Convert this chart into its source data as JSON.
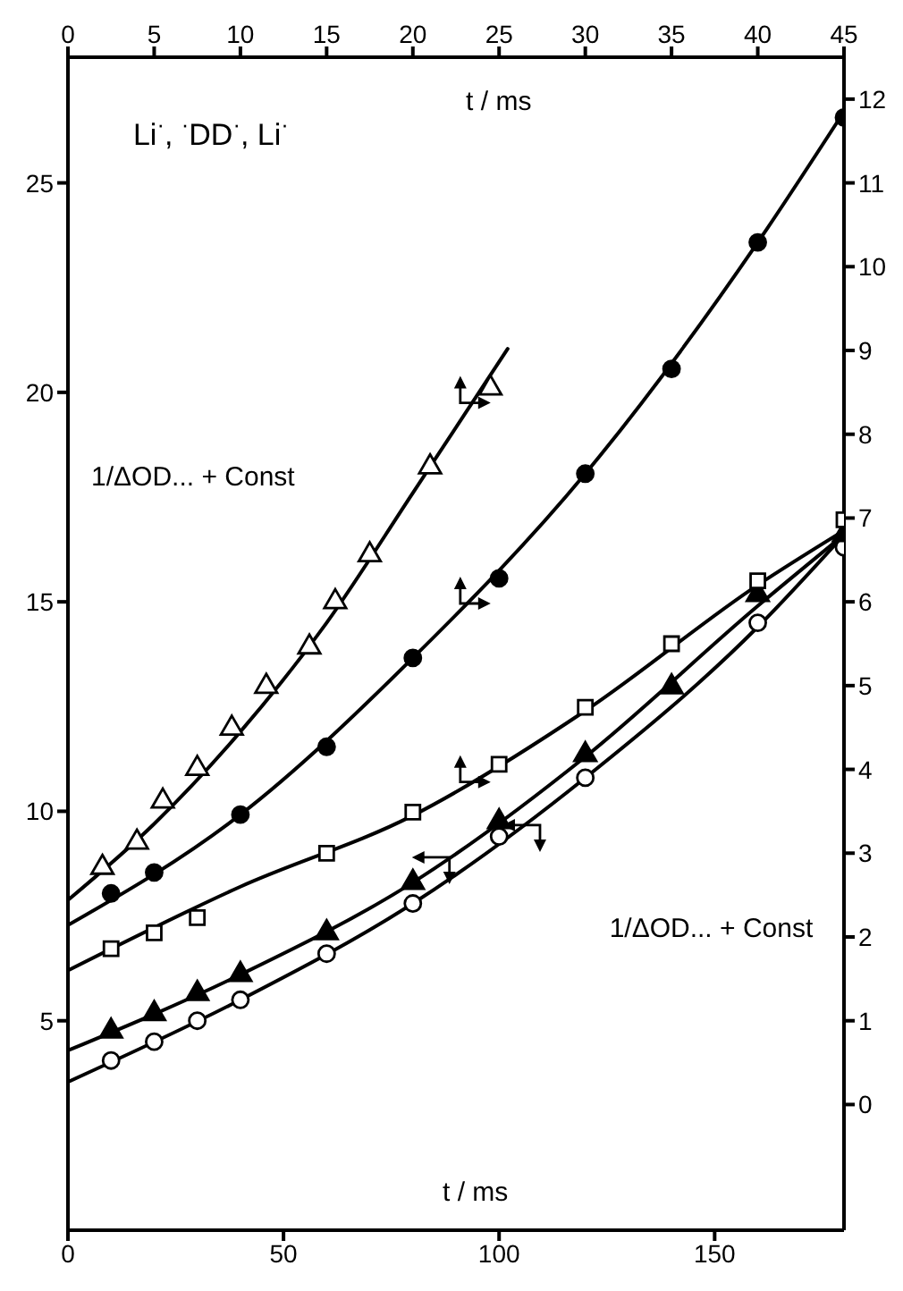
{
  "chart_data": {
    "type": "scatter",
    "title": "Li$^{·}$, $^{·}$DD$^{·}$, Li$^{·}$",
    "xlabel": "t / ms",
    "x2label": "t / ms",
    "ylabel": "1/ΔOD... + Const",
    "y2label": "1/ΔOD... + Const",
    "xlim": [
      0,
      180
    ],
    "xticks": [
      0,
      50,
      100,
      150
    ],
    "x2lim": [
      0,
      45
    ],
    "x2ticks": [
      0,
      5,
      10,
      15,
      20,
      25,
      30,
      35,
      40,
      45
    ],
    "ylim": [
      0,
      28
    ],
    "yticks": [
      5,
      10,
      15,
      20,
      25
    ],
    "y2lim": [
      -1.5,
      12.5
    ],
    "y2ticks": [
      0,
      1,
      2,
      3,
      4,
      5,
      6,
      7,
      8,
      9,
      10,
      11,
      12
    ],
    "series": [
      {
        "type": "line",
        "color": "#000000",
        "line_style": "solid",
        "marker": "none",
        "x": [
          0,
          40,
          80,
          120,
          160,
          180
        ],
        "values": [
          3.54,
          5.5,
          7.8,
          10.8,
          14.4,
          16.6
        ]
      },
      {
        "type": "line",
        "color": "#000000",
        "line_style": "solid",
        "marker": "none",
        "x": [
          0,
          40,
          80,
          120,
          160,
          180
        ],
        "values": [
          4.29,
          6.1,
          8.3,
          11.3,
          14.9,
          16.6
        ]
      },
      {
        "type": "line",
        "color": "#000000",
        "line_style": "solid",
        "marker": "none",
        "axis": "y2",
        "x": [
          0,
          40,
          80,
          120,
          160,
          180
        ],
        "values": [
          1.6,
          2.6,
          3.45,
          4.7,
          6.2,
          6.85
        ]
      },
      {
        "type": "line",
        "color": "#000000",
        "line_style": "solid",
        "marker": "none",
        "axis": "y2",
        "x": [
          0,
          40,
          80,
          120,
          160,
          180
        ],
        "values": [
          2.14,
          3.46,
          5.33,
          7.53,
          10.29,
          11.85
        ]
      },
      {
        "type": "line",
        "color": "#000000",
        "line_style": "solid",
        "marker": "none",
        "axis": "y2",
        "x": [
          0,
          20,
          40,
          60,
          80,
          102
        ],
        "values": [
          2.44,
          3.35,
          4.45,
          5.75,
          7.3,
          9.02
        ]
      },
      {
        "color": "#ffffff",
        "marker": "circle",
        "x": [
          10,
          20,
          30,
          40,
          60,
          80,
          100,
          120,
          160,
          180
        ],
        "values": [
          4.05,
          4.5,
          5.0,
          5.5,
          6.6,
          7.8,
          9.4,
          10.8,
          14.5,
          16.3
        ]
      },
      {
        "color": "#000000",
        "marker": "triangle",
        "x": [
          10,
          20,
          30,
          40,
          60,
          80,
          100,
          120,
          140,
          160,
          180
        ],
        "values": [
          4.75,
          5.17,
          5.65,
          6.1,
          7.1,
          8.3,
          9.75,
          11.35,
          12.97,
          15.17,
          16.6
        ]
      },
      {
        "color": "#ffffff",
        "marker": "square",
        "axis": "y2",
        "x": [
          10,
          20,
          30,
          60,
          80,
          100,
          120,
          140,
          160,
          180
        ],
        "values": [
          1.86,
          2.05,
          2.23,
          3.0,
          3.49,
          4.06,
          4.74,
          5.5,
          6.25,
          6.98
        ]
      },
      {
        "color": "#000000",
        "marker": "circle",
        "axis": "y2",
        "x": [
          10,
          20,
          40,
          60,
          80,
          100,
          120,
          140,
          160,
          180
        ],
        "values": [
          2.52,
          2.77,
          3.46,
          4.27,
          5.33,
          6.28,
          7.53,
          8.78,
          10.29,
          11.78
        ]
      },
      {
        "color": "#ffffff",
        "marker": "triangle",
        "axis": "y2",
        "x": [
          8,
          16,
          22,
          30,
          38,
          46,
          56,
          62,
          70,
          84,
          98
        ],
        "values": [
          2.83,
          3.13,
          3.62,
          4.01,
          4.49,
          4.99,
          5.46,
          6.0,
          6.56,
          7.61,
          8.55
        ]
      }
    ]
  }
}
